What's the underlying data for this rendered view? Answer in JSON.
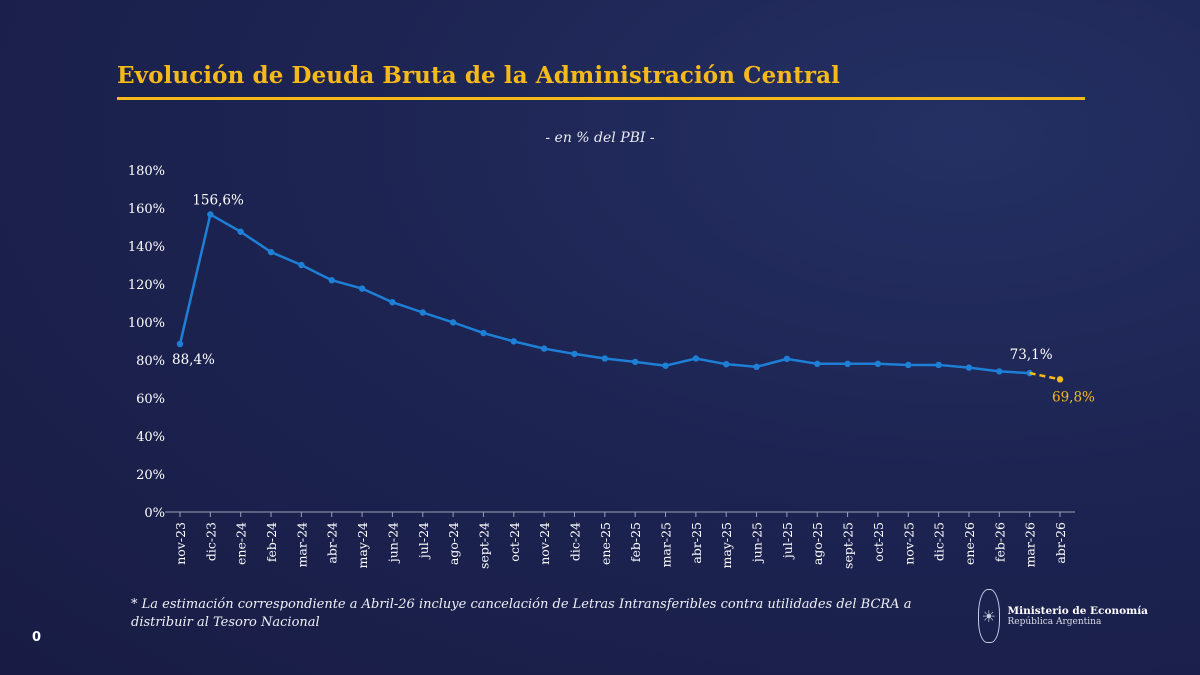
{
  "header": {
    "title": "Evolución de Deuda Bruta de la Administración Central",
    "subtitle": "- en % del PBI -"
  },
  "chart_data": {
    "type": "line",
    "title": "Evolución de Deuda Bruta de la Administración Central",
    "subtitle": "- en % del PBI -",
    "xlabel": "",
    "ylabel": "",
    "ylim": [
      0,
      180
    ],
    "yticks": [
      0,
      20,
      40,
      60,
      80,
      100,
      120,
      140,
      160,
      180
    ],
    "ytick_labels": [
      "0%",
      "20%",
      "40%",
      "60%",
      "80%",
      "100%",
      "120%",
      "140%",
      "160%",
      "180%"
    ],
    "grid": false,
    "categories": [
      "nov-23",
      "dic-23",
      "ene-24",
      "feb-24",
      "mar-24",
      "abr-24",
      "may-24",
      "jun-24",
      "jul-24",
      "ago-24",
      "sept-24",
      "oct-24",
      "nov-24",
      "dic-24",
      "ene-25",
      "feb-25",
      "mar-25",
      "abr-25",
      "may-25",
      "jun-25",
      "jul-25",
      "ago-25",
      "sept-25",
      "oct-25",
      "nov-25",
      "dic-25",
      "ene-26",
      "feb-26",
      "mar-26",
      "abr-26"
    ],
    "series": [
      {
        "values": [
          88.4,
          156.6,
          147.5,
          136.8,
          130.0,
          122.0,
          117.6,
          110.4,
          105.0,
          99.8,
          94.2,
          89.8,
          86.0,
          83.2,
          80.8,
          79.0,
          77.0,
          80.8,
          77.8,
          76.4,
          80.6,
          78.0,
          78.0,
          78.0,
          77.4,
          77.4,
          76.0,
          74.0,
          73.1,
          null
        ],
        "color": "#1d7fd6"
      },
      {
        "values": [
          null,
          null,
          null,
          null,
          null,
          null,
          null,
          null,
          null,
          null,
          null,
          null,
          null,
          null,
          null,
          null,
          null,
          null,
          null,
          null,
          null,
          null,
          null,
          null,
          null,
          null,
          null,
          null,
          73.1,
          69.8
        ],
        "color": "#f5b91a",
        "dashed": true
      }
    ],
    "annotations": [
      {
        "category": "nov-23",
        "label": "88,4%",
        "color": "#ffffff"
      },
      {
        "category": "dic-23",
        "label": "156,6%",
        "color": "#ffffff"
      },
      {
        "category": "mar-26",
        "label": "73,1%",
        "color": "#ffffff"
      },
      {
        "category": "abr-26",
        "label": "69,8%",
        "color": "#f5b91a"
      }
    ]
  },
  "footnote": "* La estimación correspondiente a Abril-26 incluye cancelación de Letras Intransferibles contra utilidades del BCRA a distribuir al Tesoro Nacional",
  "page_number": "0",
  "logo": {
    "line1": "Ministerio de Economía",
    "line2": "República Argentina",
    "icon": "coat-of-arms-icon"
  },
  "colors": {
    "background": "#1d2452",
    "accent": "#f5b91a",
    "series": "#1d7fd6"
  }
}
